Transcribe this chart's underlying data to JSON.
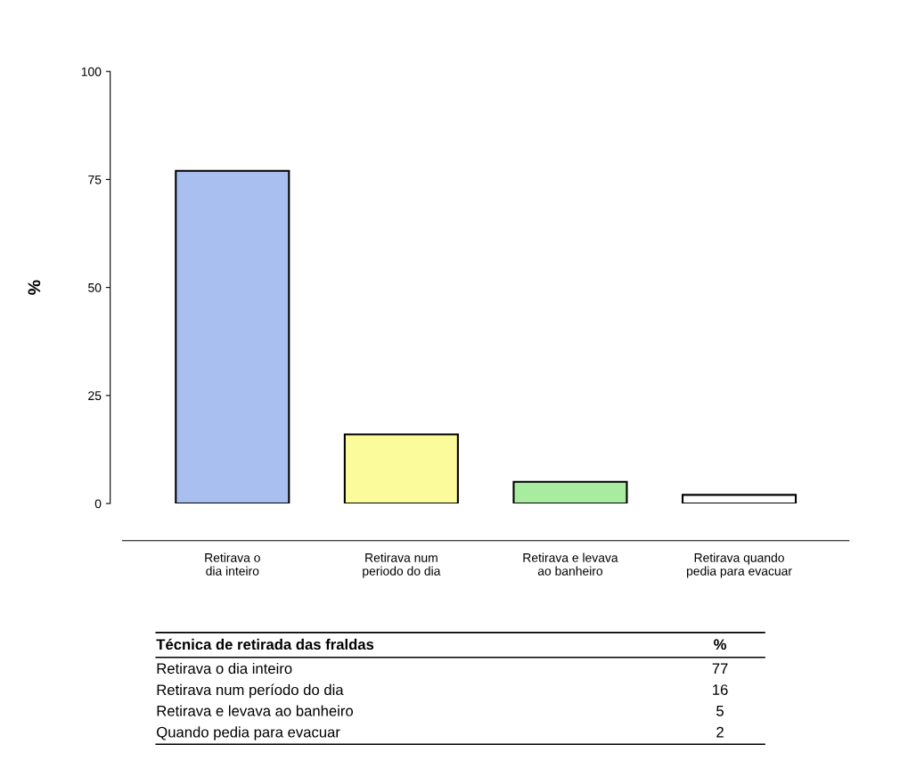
{
  "chart_data": {
    "type": "bar",
    "ylabel": "%",
    "categories": [
      "Retirava o\ndia inteiro",
      "Retirava num\nperiodo do dia",
      "Retirava e levava\nao banheiro",
      "Retirava quando\npedia para evacuar"
    ],
    "values": [
      77,
      16,
      5,
      2
    ],
    "colors": [
      "#a9bff0",
      "#fbfb9c",
      "#a8eca0",
      "#ffffff"
    ],
    "ylim": [
      0,
      100
    ],
    "yticks": [
      0,
      25,
      50,
      75,
      100
    ],
    "grid": false,
    "legend": false,
    "annotations": [
      "Técnica de retirada das fraldas",
      "%",
      "Retirava o dia inteiro",
      "77",
      "Retirava num período do dia",
      "16",
      "Retirava e levava ao banheiro",
      "5",
      "Quando pedia para evacuar",
      "2"
    ]
  }
}
